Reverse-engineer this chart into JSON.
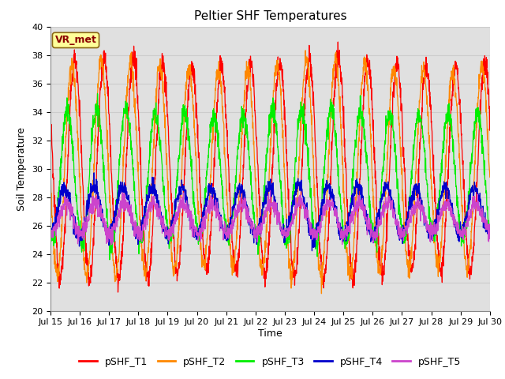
{
  "title": "Peltier SHF Temperatures",
  "xlabel": "Time",
  "ylabel": "Soil Temperature",
  "ylim": [
    20,
    40
  ],
  "xlim": [
    0,
    15
  ],
  "x_tick_labels": [
    "Jul 15",
    "Jul 16",
    "Jul 17",
    "Jul 18",
    "Jul 19",
    "Jul 20",
    "Jul 21",
    "Jul 22",
    "Jul 23",
    "Jul 24",
    "Jul 25",
    "Jul 26",
    "Jul 27",
    "Jul 28",
    "Jul 29",
    "Jul 30"
  ],
  "annotation": "VR_met",
  "series_names": [
    "pSHF_T1",
    "pSHF_T2",
    "pSHF_T3",
    "pSHF_T4",
    "pSHF_T5"
  ],
  "series_colors": [
    "#ff0000",
    "#ff8800",
    "#00ee00",
    "#0000cc",
    "#cc44cc"
  ],
  "series_amp": [
    7.5,
    7.2,
    4.5,
    1.7,
    1.1
  ],
  "series_mean": [
    30.0,
    30.0,
    29.5,
    27.0,
    26.5
  ],
  "series_phase": [
    0.0,
    0.1,
    0.25,
    0.35,
    0.3
  ],
  "series_noise": [
    0.4,
    0.35,
    0.4,
    0.3,
    0.3
  ],
  "background_color": "#e0e0e0",
  "grid_color": "#cccccc",
  "title_fontsize": 11,
  "label_fontsize": 9,
  "tick_fontsize": 8,
  "legend_fontsize": 9
}
